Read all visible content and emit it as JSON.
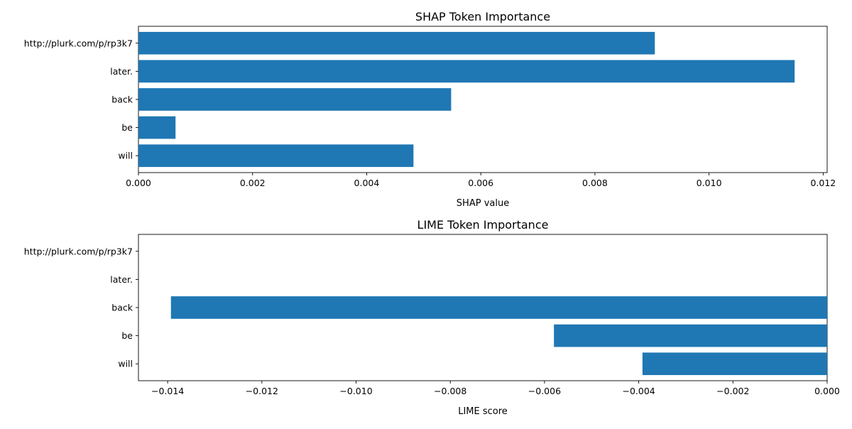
{
  "chart_data": [
    {
      "type": "bar",
      "orientation": "horizontal",
      "title": "SHAP Token Importance",
      "xlabel": "SHAP value",
      "ylabel": "",
      "categories": [
        "http://plurk.com/p/rp3k7",
        "later.",
        "back",
        "be",
        "will"
      ],
      "values": [
        0.00905,
        0.0115,
        0.00548,
        0.00065,
        0.00482
      ],
      "xlim": [
        0,
        0.01207
      ],
      "xticks": [
        0,
        0.002,
        0.004,
        0.006,
        0.008,
        0.01,
        0.012
      ],
      "xtick_labels": [
        "0.000",
        "0.002",
        "0.004",
        "0.006",
        "0.008",
        "0.010",
        "0.012"
      ],
      "bar_color": "#1f77b4",
      "grid": false,
      "legend": "none"
    },
    {
      "type": "bar",
      "orientation": "horizontal",
      "title": "LIME Token Importance",
      "xlabel": "LIME score",
      "ylabel": "",
      "categories": [
        "http://plurk.com/p/rp3k7",
        "later.",
        "back",
        "be",
        "will"
      ],
      "values": [
        0,
        0,
        -0.01393,
        -0.0058,
        -0.00392
      ],
      "xlim": [
        -0.01462,
        0
      ],
      "xticks": [
        -0.014,
        -0.012,
        -0.01,
        -0.008,
        -0.006,
        -0.004,
        -0.002,
        0
      ],
      "xtick_labels": [
        "−0.014",
        "−0.012",
        "−0.010",
        "−0.008",
        "−0.006",
        "−0.004",
        "−0.002",
        "0.000"
      ],
      "bar_color": "#1f77b4",
      "grid": false,
      "legend": "none"
    }
  ]
}
